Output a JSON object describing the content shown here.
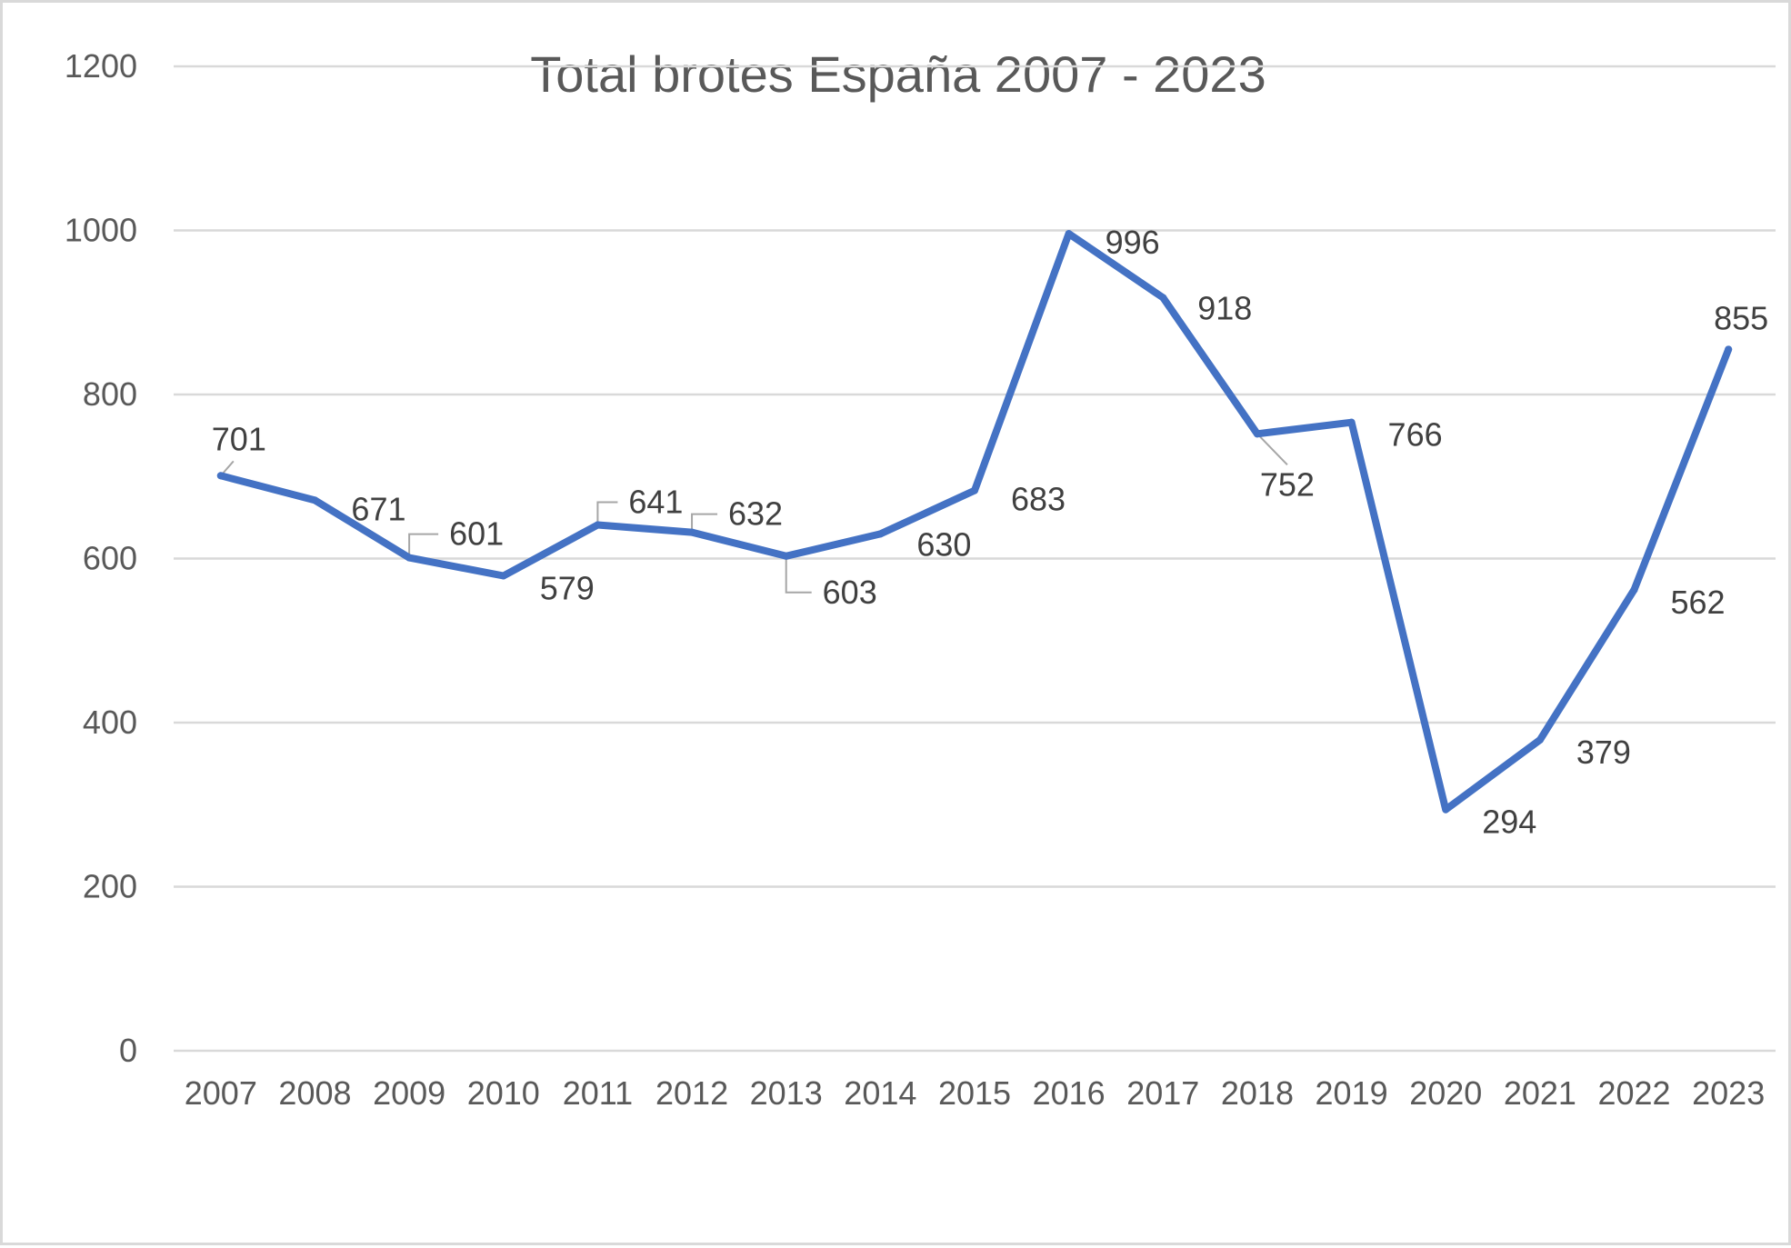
{
  "chart_data": {
    "type": "line",
    "title": "Total brotes España 2007 - 2023",
    "xlabel": "",
    "ylabel": "",
    "categories": [
      "2007",
      "2008",
      "2009",
      "2010",
      "2011",
      "2012",
      "2013",
      "2014",
      "2015",
      "2016",
      "2017",
      "2018",
      "2019",
      "2020",
      "2021",
      "2022",
      "2023"
    ],
    "series": [
      {
        "values": [
          701,
          671,
          601,
          579,
          641,
          632,
          603,
          630,
          683,
          996,
          918,
          752,
          766,
          294,
          379,
          562,
          855
        ],
        "color": "#4472c4"
      }
    ],
    "y_ticks": [
      "0",
      "200",
      "400",
      "600",
      "800",
      "1000",
      "1200"
    ],
    "ylim": [
      0,
      1200
    ],
    "grid": "horizontal",
    "legend": "none",
    "data_labels": true
  }
}
